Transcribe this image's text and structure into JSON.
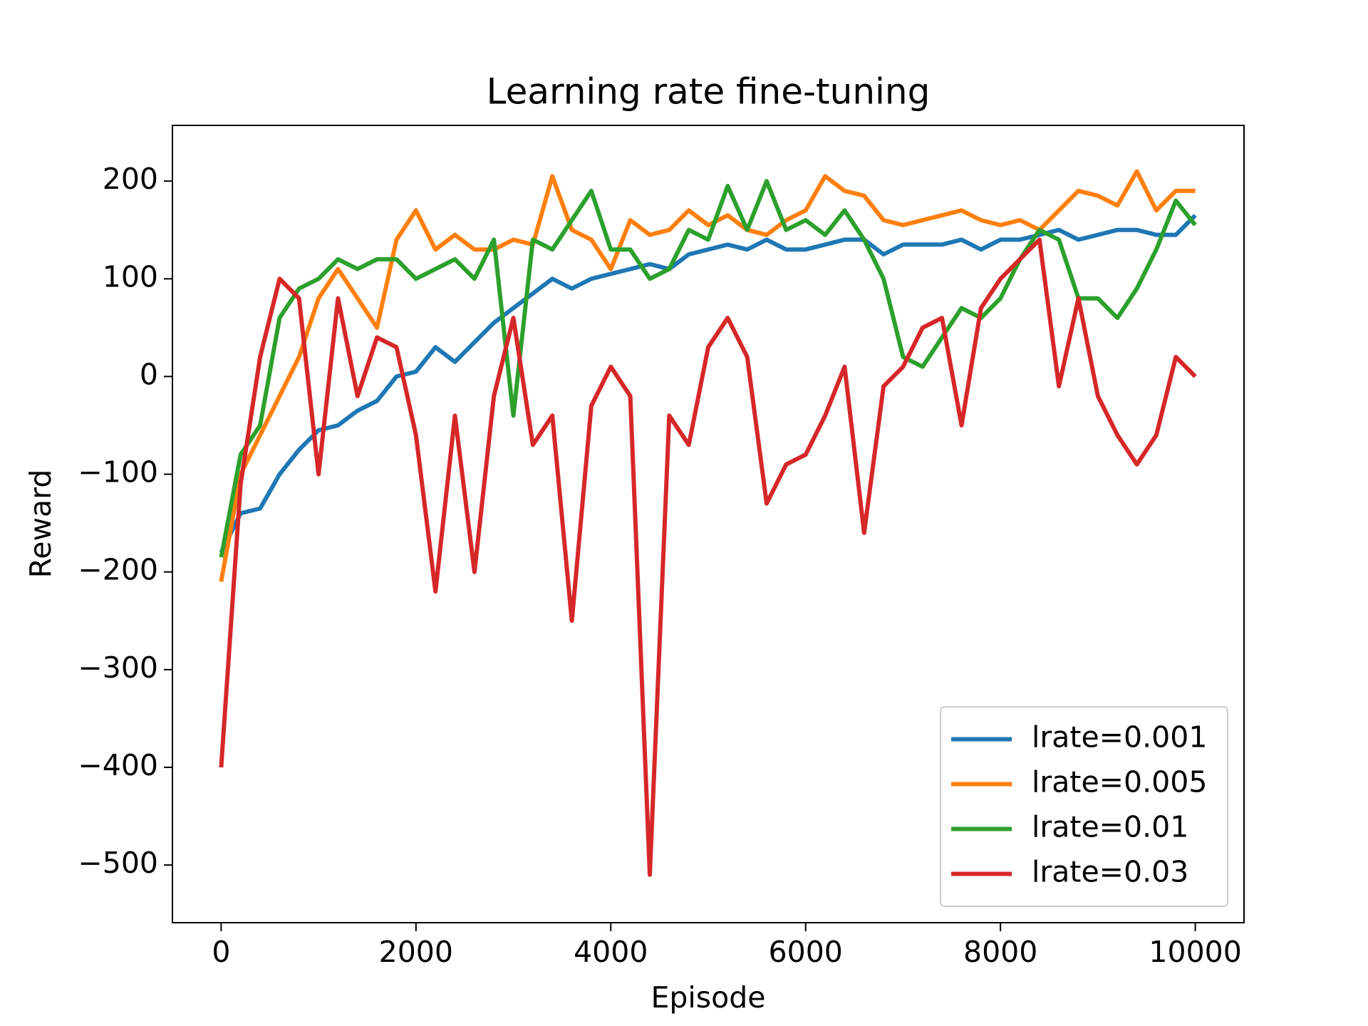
{
  "chart_data": {
    "type": "line",
    "title": "Learning rate fine-tuning",
    "x_label": "Episode",
    "y_label": "Reward",
    "x": [
      0,
      200,
      400,
      600,
      800,
      1000,
      1200,
      1400,
      1600,
      1800,
      2000,
      2200,
      2400,
      2600,
      2800,
      3000,
      3200,
      3400,
      3600,
      3800,
      4000,
      4200,
      4400,
      4600,
      4800,
      5000,
      5200,
      5400,
      5600,
      5800,
      6000,
      6200,
      6400,
      6600,
      6800,
      7000,
      7200,
      7400,
      7600,
      7800,
      8000,
      8200,
      8400,
      8600,
      8800,
      9000,
      9200,
      9400,
      9600,
      9800,
      10000
    ],
    "series": [
      {
        "name": "lrate=0.001",
        "color": "#1f77b4",
        "values": [
          -180,
          -140,
          -135,
          -100,
          -75,
          -55,
          -50,
          -35,
          -25,
          0,
          5,
          30,
          15,
          35,
          55,
          70,
          85,
          100,
          90,
          100,
          105,
          110,
          115,
          110,
          125,
          130,
          135,
          130,
          140,
          130,
          130,
          135,
          140,
          140,
          125,
          135,
          135,
          135,
          140,
          130,
          140,
          140,
          145,
          150,
          140,
          145,
          150,
          150,
          145,
          145,
          165
        ]
      },
      {
        "name": "lrate=0.005",
        "color": "#ff7f0e",
        "values": [
          -210,
          -100,
          -60,
          -20,
          20,
          80,
          110,
          80,
          50,
          140,
          170,
          130,
          145,
          130,
          130,
          140,
          135,
          205,
          150,
          140,
          110,
          160,
          145,
          150,
          170,
          155,
          165,
          150,
          145,
          160,
          170,
          205,
          190,
          185,
          160,
          155,
          160,
          165,
          170,
          160,
          155,
          160,
          150,
          170,
          190,
          185,
          175,
          210,
          170,
          190,
          190
        ]
      },
      {
        "name": "lrate=0.01",
        "color": "#2ca02c",
        "values": [
          -185,
          -80,
          -50,
          60,
          90,
          100,
          120,
          110,
          120,
          120,
          100,
          110,
          120,
          100,
          140,
          -40,
          140,
          130,
          160,
          190,
          130,
          130,
          100,
          110,
          150,
          140,
          195,
          150,
          200,
          150,
          160,
          145,
          170,
          140,
          100,
          20,
          10,
          40,
          70,
          60,
          80,
          120,
          150,
          140,
          80,
          80,
          60,
          90,
          130,
          180,
          155
        ]
      },
      {
        "name": "lrate=0.03",
        "color": "#d62728",
        "values": [
          -400,
          -110,
          20,
          100,
          80,
          -100,
          80,
          -20,
          40,
          30,
          -60,
          -220,
          -40,
          -200,
          -20,
          60,
          -70,
          -40,
          -250,
          -30,
          10,
          -20,
          -510,
          -40,
          -70,
          30,
          60,
          20,
          -130,
          -90,
          -80,
          -40,
          10,
          -160,
          -10,
          10,
          50,
          60,
          -50,
          70,
          100,
          120,
          140,
          -10,
          80,
          -20,
          -60,
          -90,
          -60,
          20,
          0
        ]
      }
    ],
    "xlim": [
      -500,
      10500
    ],
    "ylim": [
      -559,
      257
    ],
    "xticks": [
      0,
      2000,
      4000,
      6000,
      8000,
      10000
    ],
    "yticks": [
      {
        "value": -500,
        "label": "−500"
      },
      {
        "value": -400,
        "label": "−400"
      },
      {
        "value": -300,
        "label": "−300"
      },
      {
        "value": -200,
        "label": "−200"
      },
      {
        "value": -100,
        "label": "−100"
      },
      0,
      100,
      200
    ],
    "legend": "lower right"
  }
}
